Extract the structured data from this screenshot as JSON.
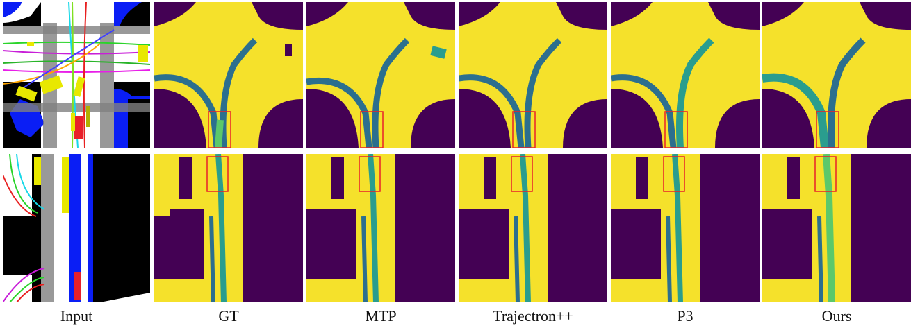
{
  "columns": [
    {
      "label": "Input"
    },
    {
      "label": "GT"
    },
    {
      "label": "MTP"
    },
    {
      "label": "Trajectron++"
    },
    {
      "label": "P3"
    },
    {
      "label": "Ours"
    }
  ],
  "rows": [
    "intersection",
    "straight-road"
  ],
  "colors": {
    "drivable": "#f5e12b",
    "nondrivable": "#440154",
    "trajectory_dark": "#2c6f8e",
    "trajectory_mid": "#2a9d8e",
    "trajectory_light": "#5cc86a",
    "highlight_box": "#e8202a",
    "input_road": "#ffffff",
    "input_bg": "#000000",
    "input_lane": "#0a1ef5"
  }
}
